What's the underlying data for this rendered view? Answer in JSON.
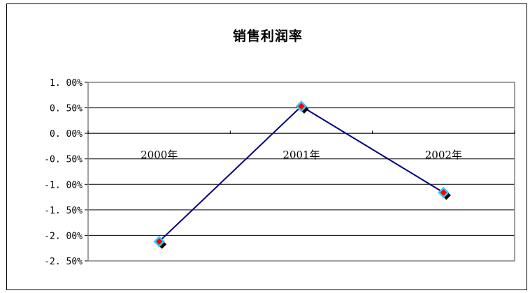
{
  "chart_data": {
    "type": "line",
    "title": "销售利润率",
    "categories": [
      "2000年",
      "2001年",
      "2002年"
    ],
    "series": [
      {
        "values": [
          -2.12,
          0.53,
          -1.16
        ]
      }
    ],
    "y_tick_labels": [
      "1. 00%",
      "0. 50%",
      "0. 00%",
      "-0. 50%",
      "-1. 00%",
      "-1. 50%",
      "-2. 00%",
      "-2. 50%"
    ],
    "y_ticks": [
      1.0,
      0.5,
      0.0,
      -0.5,
      -1.0,
      -1.5,
      -2.0,
      -2.5
    ],
    "ylim": [
      -2.5,
      1.0
    ],
    "unit": "%",
    "grid": true,
    "colors": {
      "line": "#000080",
      "marker_fill": "#ff0000",
      "marker_outline": "#33ccff",
      "marker_shadow": "#000000",
      "grid": "#000000",
      "plot_border": "#808080"
    }
  }
}
